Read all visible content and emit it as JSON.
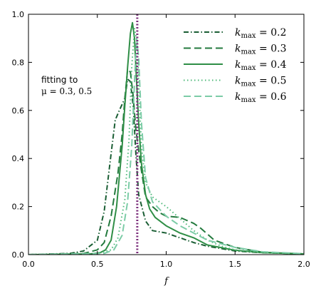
{
  "chart_data": {
    "type": "line",
    "xlabel": "f",
    "ylabel": "",
    "xlim": [
      0.0,
      2.0
    ],
    "ylim": [
      0.0,
      1.0
    ],
    "xticks": [
      "0.0",
      "0.5",
      "1.0",
      "1.5",
      "2.0"
    ],
    "yticks": [
      "0.0",
      "0.2",
      "0.4",
      "0.6",
      "0.8",
      "1.0"
    ],
    "grid": false,
    "legend_position": "top-right",
    "annotation": {
      "line1": "fitting to",
      "line2": "μ = 0.3, 0.5"
    },
    "vline": {
      "x": 0.79,
      "color": "#7b2d7b",
      "style": "dotted"
    },
    "series": [
      {
        "name": "k_max = 0.2",
        "legend_label": "kmax = 0.2",
        "color": "#1a5e34",
        "dash": "dashdot",
        "points": [
          [
            0.0,
            0.0
          ],
          [
            0.3,
            0.005
          ],
          [
            0.4,
            0.015
          ],
          [
            0.5,
            0.06
          ],
          [
            0.55,
            0.18
          ],
          [
            0.6,
            0.42
          ],
          [
            0.63,
            0.56
          ],
          [
            0.66,
            0.6
          ],
          [
            0.7,
            0.65
          ],
          [
            0.72,
            0.73
          ],
          [
            0.74,
            0.72
          ],
          [
            0.76,
            0.62
          ],
          [
            0.78,
            0.42
          ],
          [
            0.8,
            0.25
          ],
          [
            0.85,
            0.14
          ],
          [
            0.9,
            0.1
          ],
          [
            1.0,
            0.09
          ],
          [
            1.1,
            0.07
          ],
          [
            1.2,
            0.05
          ],
          [
            1.3,
            0.035
          ],
          [
            1.5,
            0.015
          ],
          [
            1.7,
            0.008
          ],
          [
            2.0,
            0.003
          ]
        ]
      },
      {
        "name": "k_max = 0.3",
        "legend_label": "kmax = 0.3",
        "color": "#237a3e",
        "dash": "longdash",
        "points": [
          [
            0.0,
            0.0
          ],
          [
            0.4,
            0.005
          ],
          [
            0.5,
            0.02
          ],
          [
            0.55,
            0.05
          ],
          [
            0.6,
            0.16
          ],
          [
            0.65,
            0.34
          ],
          [
            0.68,
            0.5
          ],
          [
            0.7,
            0.65
          ],
          [
            0.72,
            0.77
          ],
          [
            0.74,
            0.76
          ],
          [
            0.76,
            0.66
          ],
          [
            0.78,
            0.52
          ],
          [
            0.82,
            0.35
          ],
          [
            0.85,
            0.24
          ],
          [
            0.9,
            0.2
          ],
          [
            0.95,
            0.175
          ],
          [
            1.0,
            0.16
          ],
          [
            1.1,
            0.155
          ],
          [
            1.2,
            0.13
          ],
          [
            1.25,
            0.11
          ],
          [
            1.35,
            0.06
          ],
          [
            1.5,
            0.03
          ],
          [
            1.7,
            0.01
          ],
          [
            1.9,
            0.005
          ],
          [
            2.0,
            0.003
          ]
        ]
      },
      {
        "name": "k_max = 0.4",
        "legend_label": "kmax = 0.4",
        "color": "#2f8e46",
        "dash": "solid",
        "points": [
          [
            0.0,
            0.0
          ],
          [
            0.45,
            0.003
          ],
          [
            0.52,
            0.008
          ],
          [
            0.56,
            0.02
          ],
          [
            0.6,
            0.06
          ],
          [
            0.64,
            0.2
          ],
          [
            0.68,
            0.45
          ],
          [
            0.7,
            0.62
          ],
          [
            0.72,
            0.78
          ],
          [
            0.74,
            0.92
          ],
          [
            0.755,
            0.965
          ],
          [
            0.77,
            0.9
          ],
          [
            0.78,
            0.78
          ],
          [
            0.8,
            0.55
          ],
          [
            0.82,
            0.38
          ],
          [
            0.85,
            0.25
          ],
          [
            0.88,
            0.19
          ],
          [
            0.92,
            0.155
          ],
          [
            1.0,
            0.12
          ],
          [
            1.1,
            0.09
          ],
          [
            1.2,
            0.07
          ],
          [
            1.3,
            0.04
          ],
          [
            1.5,
            0.018
          ],
          [
            1.7,
            0.008
          ],
          [
            2.0,
            0.003
          ]
        ]
      },
      {
        "name": "k_max = 0.5",
        "legend_label": "kmax = 0.5",
        "color": "#4fb97a",
        "dash": "dotted",
        "points": [
          [
            0.0,
            0.0
          ],
          [
            0.5,
            0.005
          ],
          [
            0.6,
            0.02
          ],
          [
            0.65,
            0.07
          ],
          [
            0.7,
            0.23
          ],
          [
            0.73,
            0.48
          ],
          [
            0.75,
            0.78
          ],
          [
            0.77,
            0.94
          ],
          [
            0.79,
            0.88
          ],
          [
            0.8,
            0.72
          ],
          [
            0.82,
            0.45
          ],
          [
            0.85,
            0.3
          ],
          [
            0.9,
            0.24
          ],
          [
            0.95,
            0.22
          ],
          [
            1.0,
            0.2
          ],
          [
            1.1,
            0.15
          ],
          [
            1.2,
            0.1
          ],
          [
            1.3,
            0.06
          ],
          [
            1.4,
            0.035
          ],
          [
            1.5,
            0.02
          ],
          [
            1.7,
            0.01
          ],
          [
            2.0,
            0.004
          ]
        ]
      },
      {
        "name": "k_max = 0.6",
        "legend_label": "kmax = 0.6",
        "color": "#7ccca7",
        "dash": "longdash",
        "points": [
          [
            0.0,
            0.0
          ],
          [
            0.55,
            0.005
          ],
          [
            0.62,
            0.02
          ],
          [
            0.68,
            0.08
          ],
          [
            0.72,
            0.22
          ],
          [
            0.75,
            0.45
          ],
          [
            0.77,
            0.72
          ],
          [
            0.785,
            0.9
          ],
          [
            0.8,
            0.82
          ],
          [
            0.82,
            0.55
          ],
          [
            0.85,
            0.32
          ],
          [
            0.9,
            0.22
          ],
          [
            1.0,
            0.16
          ],
          [
            1.1,
            0.12
          ],
          [
            1.2,
            0.09
          ],
          [
            1.3,
            0.06
          ],
          [
            1.5,
            0.03
          ],
          [
            1.7,
            0.012
          ],
          [
            2.0,
            0.004
          ]
        ]
      }
    ]
  }
}
